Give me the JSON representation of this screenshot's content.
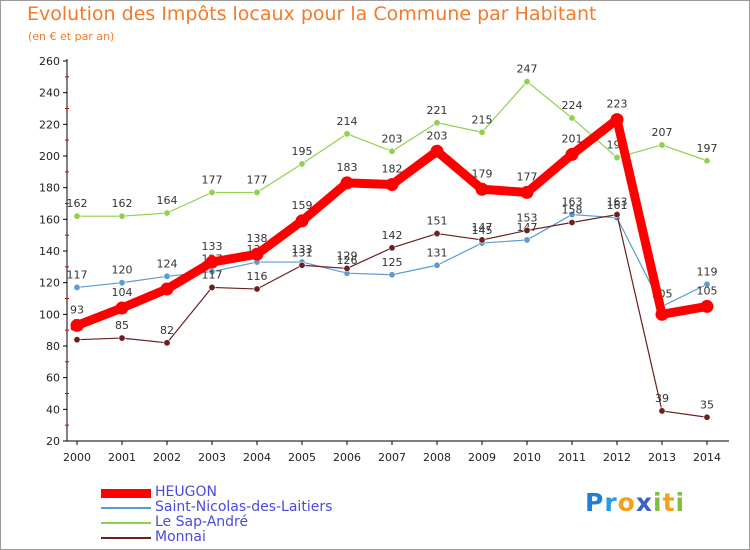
{
  "header": {
    "title": "Evolution des Impôts locaux pour la Commune par Habitant",
    "subtitle": "(en € et par an)"
  },
  "logo": {
    "letters": [
      {
        "ch": "P",
        "color": "#1f7fd6"
      },
      {
        "ch": "r",
        "color": "#2b9be0"
      },
      {
        "ch": "o",
        "color": "#f4a21e"
      },
      {
        "ch": "x",
        "color": "#3a62c9"
      },
      {
        "ch": "i",
        "color": "#7cc142"
      },
      {
        "ch": "t",
        "color": "#f4a21e"
      },
      {
        "ch": "i",
        "color": "#7cc142"
      }
    ]
  },
  "chart_data": {
    "type": "line",
    "title": "Evolution des Impôts locaux pour la Commune par Habitant",
    "subtitle": "(en € et par an)",
    "xlabel": "",
    "ylabel": "",
    "x": [
      "2000",
      "2001",
      "2002",
      "2003",
      "2004",
      "2005",
      "2006",
      "2007",
      "2008",
      "2009",
      "2010",
      "2011",
      "2012",
      "2013",
      "2014"
    ],
    "ylim": [
      20,
      260
    ],
    "yticks": [
      20,
      40,
      60,
      80,
      100,
      120,
      140,
      160,
      180,
      200,
      220,
      240,
      260
    ],
    "grid": false,
    "legend_position": "bottom-left",
    "series": [
      {
        "name": "HEUGON",
        "color": "#ff0000",
        "values": [
          93,
          104,
          116,
          133,
          138,
          159,
          183,
          182,
          203,
          179,
          177,
          201,
          223,
          100,
          105
        ],
        "labels": [
          "93",
          "104",
          "",
          "133",
          "138",
          "159",
          "183",
          "182",
          "203",
          "179",
          "177",
          "201",
          "223",
          "",
          "105"
        ]
      },
      {
        "name": "Saint-Nicolas-des-Laitiers",
        "color": "#5b9bd5",
        "values": [
          117,
          120,
          124,
          127,
          133,
          133,
          126,
          125,
          131,
          145,
          147,
          163,
          161,
          105,
          119
        ],
        "labels": [
          "117",
          "120",
          "124",
          "127",
          "133",
          "133",
          "126",
          "125",
          "131",
          "145",
          "147",
          "163",
          "161",
          "105",
          "119"
        ]
      },
      {
        "name": "Le Sap-André",
        "color": "#8fd14f",
        "values": [
          162,
          162,
          164,
          177,
          177,
          195,
          214,
          203,
          221,
          215,
          247,
          224,
          199,
          207,
          197
        ],
        "labels": [
          "162",
          "162",
          "164",
          "177",
          "177",
          "195",
          "214",
          "203",
          "221",
          "215",
          "247",
          "224",
          "199",
          "207",
          "197"
        ]
      },
      {
        "name": "Monnai",
        "color": "#6b1f1f",
        "values": [
          84,
          85,
          82,
          117,
          116,
          131,
          129,
          142,
          151,
          147,
          153,
          158,
          163,
          39,
          35
        ],
        "labels": [
          "84",
          "85",
          "82",
          "117",
          "116",
          "131",
          "129",
          "142",
          "151",
          "147",
          "153",
          "158",
          "163",
          "39",
          "35"
        ]
      }
    ]
  }
}
